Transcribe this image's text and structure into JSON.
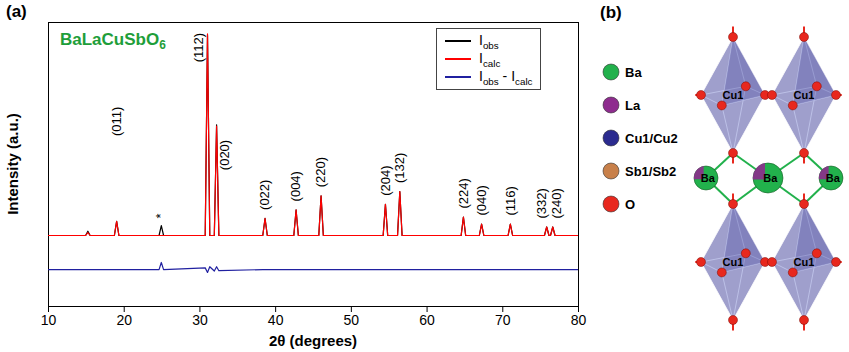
{
  "chart_data": {
    "type": "line",
    "panel_label": "(a)",
    "sample_label": {
      "text": "BaLaCuSbO6",
      "color": "#1e9e3a"
    },
    "x_label": "2θ (degrees)",
    "y_label": "Intensity (a.u.)",
    "x": [
      10,
      14.9,
      15.2,
      15.5,
      18.7,
      19.0,
      19.3,
      24.6,
      24.9,
      25.2,
      30.7,
      31.0,
      31.3,
      31.9,
      32.2,
      32.5,
      38.3,
      38.6,
      38.9,
      42.4,
      42.7,
      43.0,
      45.7,
      46.0,
      46.3,
      54.2,
      54.5,
      54.8,
      56.1,
      56.4,
      56.7,
      64.5,
      64.8,
      65.1,
      66.9,
      67.2,
      67.5,
      70.7,
      71.0,
      71.3,
      75.5,
      75.8,
      76.1,
      76.3,
      76.6,
      76.9,
      80
    ],
    "series": [
      {
        "name": "Iobs",
        "color": "#000000",
        "values": [
          25,
          25,
          26.5,
          25,
          25,
          30,
          25,
          25,
          28.5,
          25,
          25,
          95.5,
          25,
          25,
          64,
          25,
          25,
          31,
          25,
          25,
          34,
          25,
          25,
          39,
          25,
          25,
          36,
          25,
          25,
          40.5,
          25,
          25,
          31.5,
          25,
          25,
          29,
          25,
          25,
          29,
          25,
          25,
          28,
          25,
          25,
          28,
          25,
          25
        ]
      },
      {
        "name": "Icalc",
        "color": "#ff0000",
        "values": [
          25,
          25,
          26,
          25,
          25,
          30,
          25,
          25,
          25,
          25,
          25,
          96,
          25,
          25,
          63.5,
          25,
          25,
          31,
          25,
          25,
          34,
          25,
          25,
          39,
          25,
          25,
          36,
          25,
          25,
          40.5,
          25,
          25,
          31.5,
          25,
          25,
          29,
          25,
          25,
          29,
          25,
          25,
          28,
          25,
          25,
          28,
          25,
          25
        ]
      },
      {
        "name": "Iobs - Icalc",
        "color": "#2020a0",
        "values": [
          13,
          13,
          13,
          13,
          13,
          13,
          13,
          13,
          15.5,
          13,
          13.6,
          12,
          14,
          12.5,
          14,
          12.6,
          13,
          13,
          13,
          13,
          13,
          13,
          13,
          13,
          13,
          13,
          13,
          13,
          13,
          13,
          13,
          13,
          13,
          13,
          13,
          13,
          13,
          13,
          13,
          13,
          13,
          13,
          13,
          13,
          13,
          13,
          13
        ]
      }
    ],
    "xlim": [
      10,
      80
    ],
    "xticks": [
      10,
      20,
      30,
      40,
      50,
      60,
      70,
      80
    ],
    "ylim": [
      0,
      100
    ],
    "yticks": [],
    "tick_labels": "x",
    "legend": "top-right",
    "annotations": [
      {
        "text": "(011)",
        "x": 19.0,
        "y": 60
      },
      {
        "text": "*",
        "x": 24.9,
        "y": 31
      },
      {
        "text": "(112)",
        "x": 29.9,
        "y": 86
      },
      {
        "text": "(020)",
        "x": 33.3,
        "y": 48
      },
      {
        "text": "(022)",
        "x": 38.6,
        "y": 34
      },
      {
        "text": "(004)",
        "x": 42.7,
        "y": 37
      },
      {
        "text": "(220)",
        "x": 46.0,
        "y": 42
      },
      {
        "text": "(204)",
        "x": 54.5,
        "y": 39
      },
      {
        "text": "(132)",
        "x": 56.4,
        "y": 43.5
      },
      {
        "text": "(224)",
        "x": 64.8,
        "y": 34.5
      },
      {
        "text": "(040)",
        "x": 67.2,
        "y": 32
      },
      {
        "text": "(116)",
        "x": 71.0,
        "y": 32
      },
      {
        "text": "(332)",
        "x": 75.1,
        "y": 31
      },
      {
        "text": "(240)",
        "x": 77.1,
        "y": 31
      }
    ]
  },
  "panel_b": {
    "panel_label": "(b)",
    "legend": [
      {
        "name": "Ba",
        "color": "#22b14c"
      },
      {
        "name": "La",
        "color": "#8e2c8e"
      },
      {
        "name": "Cu1/Cu2",
        "color": "#2b2b8f"
      },
      {
        "name": "Sb1/Sb2",
        "color": "#c8804a"
      },
      {
        "name": "O",
        "color": "#e8281e"
      }
    ],
    "octahedra": [
      {
        "label": "Cu1"
      },
      {
        "label": "Cu1"
      },
      {
        "label": "Cu1"
      },
      {
        "label": "Cu1"
      }
    ],
    "atoms": [
      {
        "label": "Ba"
      },
      {
        "label": "Ba"
      },
      {
        "label": "Ba"
      }
    ]
  }
}
